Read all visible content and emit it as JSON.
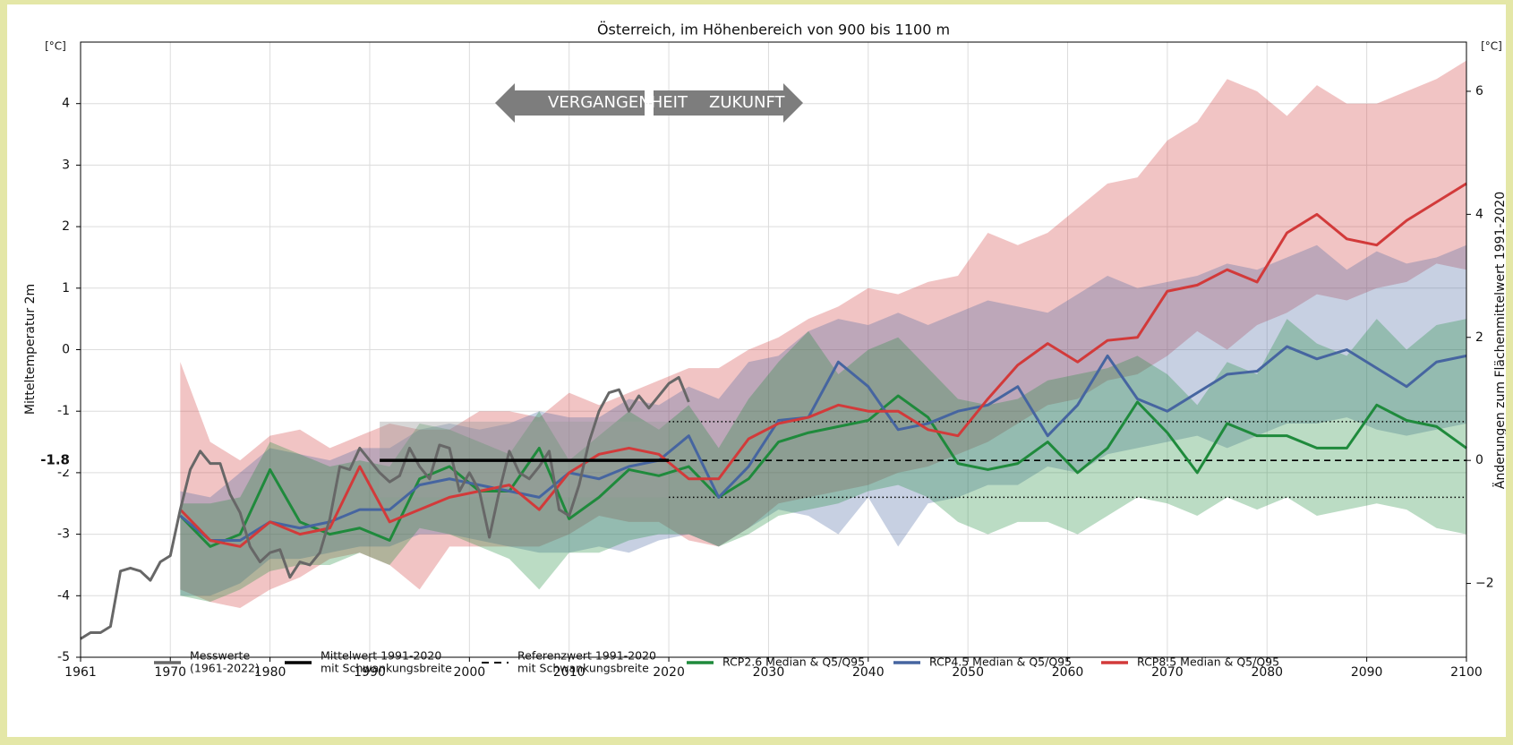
{
  "chart_data": {
    "type": "line",
    "title": "Österreich, im Höhenbereich von 900 bis 1100 m",
    "ylabel": "Mitteltemperatur 2m",
    "y2label": "Änderungen zum Flächenmittelwert 1991-2020",
    "yunit": "[°C]",
    "y2unit": "[°C]",
    "annotations": {
      "past": "VERGANGENHEIT",
      "future": "ZUKUNFT"
    },
    "xlim": [
      1961,
      2100
    ],
    "xticks": [
      1961,
      1970,
      1980,
      1990,
      2000,
      2010,
      2020,
      2030,
      2040,
      2050,
      2060,
      2070,
      2080,
      2090,
      2100
    ],
    "ylim": [
      -5,
      5
    ],
    "yticks": [
      -5,
      -4,
      -3,
      -2,
      -1,
      0,
      1,
      2,
      3,
      4
    ],
    "y2lim": [
      -3.2,
      6.8
    ],
    "y2ticks": [
      {
        "value": -2,
        "label": "−2"
      },
      0,
      2,
      4,
      6
    ],
    "grid": true,
    "x": [
      1971,
      1974,
      1977,
      1980,
      1983,
      1986,
      1989,
      1992,
      1995,
      1998,
      2001,
      2004,
      2007,
      2010,
      2013,
      2016,
      2019,
      2022,
      2025,
      2028,
      2031,
      2034,
      2037,
      2040,
      2043,
      2046,
      2049,
      2052,
      2055,
      2058,
      2061,
      2064,
      2067,
      2070,
      2073,
      2076,
      2079,
      2082,
      2085,
      2088,
      2091,
      2094,
      2097,
      2100
    ],
    "series": [
      {
        "name": [
          "Messwerte",
          "(1961-2022)"
        ],
        "kind": "observed",
        "color": "#676767",
        "x": [
          1961,
          1962,
          1963,
          1964,
          1965,
          1966,
          1967,
          1968,
          1969,
          1970,
          1971,
          1972,
          1973,
          1974,
          1975,
          1976,
          1977,
          1978,
          1979,
          1980,
          1981,
          1982,
          1983,
          1984,
          1985,
          1986,
          1987,
          1988,
          1989,
          1990,
          1991,
          1992,
          1993,
          1994,
          1995,
          1996,
          1997,
          1998,
          1999,
          2000,
          2001,
          2002,
          2003,
          2004,
          2005,
          2006,
          2007,
          2008,
          2009,
          2010,
          2011,
          2012,
          2013,
          2014,
          2015,
          2016,
          2017,
          2018,
          2019,
          2020,
          2021,
          2022
        ],
        "values": [
          -4.7,
          -4.6,
          -4.6,
          -4.5,
          -3.6,
          -3.55,
          -3.6,
          -3.75,
          -3.45,
          -3.35,
          -2.6,
          -1.95,
          -1.65,
          -1.85,
          -1.85,
          -2.35,
          -2.65,
          -3.2,
          -3.45,
          -3.3,
          -3.25,
          -3.7,
          -3.45,
          -3.5,
          -3.3,
          -2.75,
          -1.9,
          -1.95,
          -1.6,
          -1.8,
          -2.0,
          -2.15,
          -2.05,
          -1.6,
          -1.9,
          -2.1,
          -1.55,
          -1.6,
          -2.3,
          -2.0,
          -2.3,
          -3.05,
          -2.3,
          -1.65,
          -2.0,
          -2.1,
          -1.9,
          -1.65,
          -2.6,
          -2.7,
          -2.2,
          -1.5,
          -1.0,
          -0.7,
          -0.65,
          -1.0,
          -0.75,
          -0.95,
          -0.75,
          -0.55,
          -0.45,
          -0.85
        ]
      },
      {
        "name": [
          "Mittelwert 1991-2020",
          "mit Schwankungsbreite"
        ],
        "kind": "mean",
        "color": "#000000",
        "x": [
          1991,
          2020
        ],
        "value": -1.8,
        "band": [
          -2.4,
          -1.17
        ]
      },
      {
        "name": [
          "Referenzwert 1991-2020",
          "mit Schwankungsbreite"
        ],
        "kind": "reference",
        "color": "#000000",
        "x": [
          2020,
          2100
        ],
        "value": -1.8,
        "band": [
          -2.4,
          -1.17
        ]
      },
      {
        "name": [
          "RCP2.6 Median & Q5/Q95"
        ],
        "kind": "scenario",
        "color": "#1f8a3c",
        "values": [
          -2.7,
          -3.2,
          -3.0,
          -1.95,
          -2.8,
          -3.0,
          -2.9,
          -3.1,
          -2.1,
          -1.9,
          -2.3,
          -2.3,
          -1.6,
          -2.75,
          -2.4,
          -1.95,
          -2.05,
          -1.9,
          -2.4,
          -2.1,
          -1.5,
          -1.35,
          -1.25,
          -1.15,
          -0.75,
          -1.1,
          -1.85,
          -1.95,
          -1.85,
          -1.5,
          -2.0,
          -1.6,
          -0.85,
          -1.35,
          -2.0,
          -1.2,
          -1.4,
          -1.4,
          -1.6,
          -1.6,
          -0.9,
          -1.15,
          -1.25,
          -1.6
        ],
        "q5": [
          -4.0,
          -4.1,
          -3.9,
          -3.6,
          -3.5,
          -3.5,
          -3.3,
          -3.5,
          -2.9,
          -3.0,
          -3.2,
          -3.4,
          -3.9,
          -3.3,
          -3.3,
          -3.1,
          -3.0,
          -3.0,
          -3.2,
          -3.0,
          -2.7,
          -2.6,
          -2.5,
          -2.3,
          -2.2,
          -2.4,
          -2.8,
          -3.0,
          -2.8,
          -2.8,
          -3.0,
          -2.7,
          -2.4,
          -2.5,
          -2.7,
          -2.4,
          -2.6,
          -2.4,
          -2.7,
          -2.6,
          -2.5,
          -2.6,
          -2.9,
          -3.0
        ],
        "q95": [
          -2.5,
          -2.5,
          -2.4,
          -1.5,
          -1.7,
          -1.9,
          -1.8,
          -1.9,
          -1.2,
          -1.3,
          -1.5,
          -1.7,
          -1.0,
          -1.8,
          -1.4,
          -1.0,
          -1.3,
          -0.9,
          -1.6,
          -0.8,
          -0.2,
          0.3,
          -0.4,
          0.0,
          0.2,
          -0.3,
          -0.8,
          -0.9,
          -0.8,
          -0.5,
          -0.4,
          -0.3,
          -0.1,
          -0.4,
          -0.9,
          -0.2,
          -0.4,
          0.5,
          0.1,
          -0.1,
          0.5,
          0.0,
          0.4,
          0.5
        ]
      },
      {
        "name": [
          "RCP4.5 Median & Q5/Q95"
        ],
        "kind": "scenario",
        "color": "#4665a0",
        "values": [
          -2.7,
          -3.1,
          -3.1,
          -2.8,
          -2.9,
          -2.8,
          -2.6,
          -2.6,
          -2.2,
          -2.1,
          -2.2,
          -2.3,
          -2.4,
          -2.0,
          -2.1,
          -1.9,
          -1.8,
          -1.4,
          -2.4,
          -1.9,
          -1.15,
          -1.1,
          -0.2,
          -0.6,
          -1.3,
          -1.2,
          -1.0,
          -0.9,
          -0.6,
          -1.4,
          -0.9,
          -0.1,
          -0.8,
          -1.0,
          -0.7,
          -0.4,
          -0.35,
          0.05,
          -0.15,
          0.0,
          -0.3,
          -0.6,
          -0.2,
          -0.1
        ],
        "q5": [
          -4.0,
          -4.0,
          -3.8,
          -3.4,
          -3.4,
          -3.3,
          -3.2,
          -3.2,
          -3.0,
          -3.0,
          -3.1,
          -3.2,
          -3.3,
          -3.3,
          -3.2,
          -3.3,
          -3.1,
          -3.0,
          -3.2,
          -2.9,
          -2.6,
          -2.7,
          -3.0,
          -2.4,
          -3.2,
          -2.5,
          -2.4,
          -2.2,
          -2.2,
          -1.9,
          -2.0,
          -1.7,
          -1.6,
          -1.5,
          -1.4,
          -1.6,
          -1.4,
          -1.2,
          -1.2,
          -1.1,
          -1.3,
          -1.4,
          -1.3,
          -1.2
        ],
        "q95": [
          -2.3,
          -2.4,
          -2.0,
          -1.6,
          -1.7,
          -1.8,
          -1.6,
          -1.6,
          -1.3,
          -1.2,
          -1.3,
          -1.2,
          -1.0,
          -1.1,
          -1.1,
          -0.8,
          -0.9,
          -0.6,
          -0.8,
          -0.2,
          -0.1,
          0.3,
          0.5,
          0.4,
          0.6,
          0.4,
          0.6,
          0.8,
          0.7,
          0.6,
          0.9,
          1.2,
          1.0,
          1.1,
          1.2,
          1.4,
          1.3,
          1.5,
          1.7,
          1.3,
          1.6,
          1.4,
          1.5,
          1.7
        ]
      },
      {
        "name": [
          "RCP8.5 Median & Q5/Q95"
        ],
        "kind": "scenario",
        "color": "#d23a3a",
        "values": [
          -2.6,
          -3.1,
          -3.2,
          -2.8,
          -3.0,
          -2.9,
          -1.9,
          -2.8,
          -2.6,
          -2.4,
          -2.3,
          -2.2,
          -2.6,
          -2.0,
          -1.7,
          -1.6,
          -1.7,
          -2.1,
          -2.1,
          -1.45,
          -1.2,
          -1.1,
          -0.9,
          -1.0,
          -1.0,
          -1.3,
          -1.4,
          -0.8,
          -0.25,
          0.1,
          -0.2,
          0.15,
          0.2,
          0.95,
          1.05,
          1.3,
          1.1,
          1.9,
          2.2,
          1.8,
          1.7,
          2.1,
          2.4,
          2.7
        ],
        "q5": [
          -3.9,
          -4.1,
          -4.2,
          -3.9,
          -3.7,
          -3.4,
          -3.3,
          -3.5,
          -3.9,
          -3.2,
          -3.2,
          -3.2,
          -3.2,
          -3.0,
          -2.7,
          -2.8,
          -2.8,
          -3.1,
          -3.2,
          -2.9,
          -2.5,
          -2.4,
          -2.3,
          -2.2,
          -2.0,
          -1.9,
          -1.7,
          -1.5,
          -1.2,
          -0.9,
          -0.8,
          -0.5,
          -0.4,
          -0.1,
          0.3,
          0.0,
          0.4,
          0.6,
          0.9,
          0.8,
          1.0,
          1.1,
          1.4,
          1.3
        ],
        "q95": [
          -0.2,
          -1.5,
          -1.8,
          -1.4,
          -1.3,
          -1.6,
          -1.4,
          -1.2,
          -1.3,
          -1.3,
          -1.0,
          -1.0,
          -1.1,
          -0.7,
          -0.9,
          -0.7,
          -0.5,
          -0.3,
          -0.3,
          0.0,
          0.2,
          0.5,
          0.7,
          1.0,
          0.9,
          1.1,
          1.2,
          1.9,
          1.7,
          1.9,
          2.3,
          2.7,
          2.8,
          3.4,
          3.7,
          4.4,
          4.2,
          3.8,
          4.3,
          4.0,
          4.0,
          4.2,
          4.4,
          4.7
        ]
      }
    ]
  }
}
